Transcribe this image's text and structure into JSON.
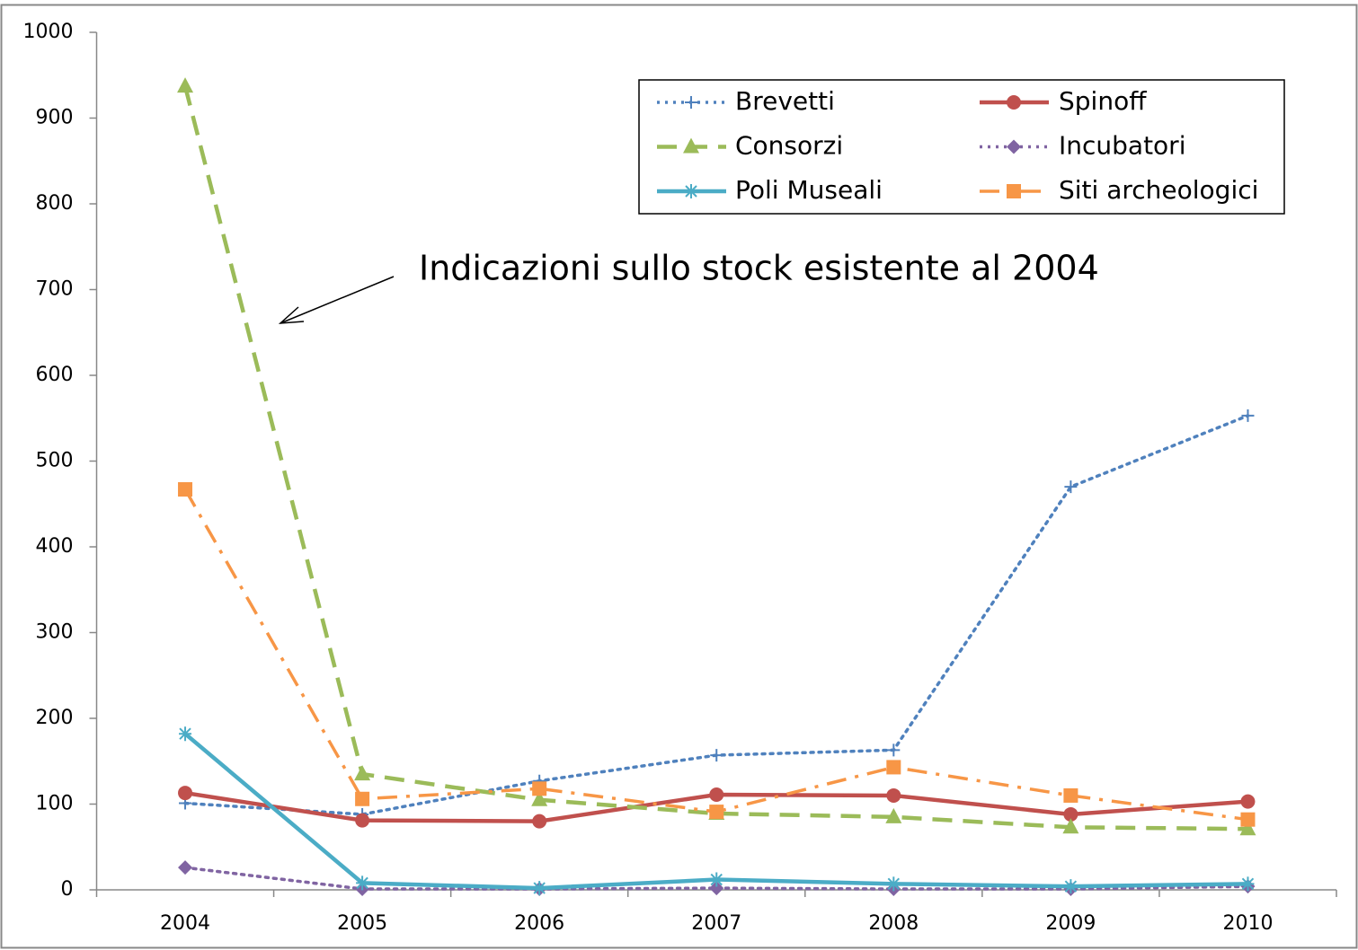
{
  "chart_data": {
    "type": "line",
    "annotation": "Indicazioni sullo stock esistente al 2004",
    "categories": [
      "2004",
      "2005",
      "2006",
      "2007",
      "2008",
      "2009",
      "2010"
    ],
    "ylim": [
      0,
      1000
    ],
    "yticks": [
      0,
      100,
      200,
      300,
      400,
      500,
      600,
      700,
      800,
      900,
      1000
    ],
    "series": [
      {
        "name": "Brevetti",
        "color": "#4f81bd",
        "dash": "dot",
        "marker": "plus",
        "values": [
          101,
          88,
          127,
          157,
          163,
          470,
          553
        ]
      },
      {
        "name": "Spinoff",
        "color": "#c0504d",
        "dash": "solid",
        "marker": "circle",
        "values": [
          113,
          81,
          80,
          111,
          110,
          88,
          103
        ]
      },
      {
        "name": "Consorzi",
        "color": "#9bbb59",
        "dash": "dash",
        "marker": "triangle",
        "values": [
          937,
          135,
          105,
          89,
          85,
          73,
          71
        ]
      },
      {
        "name": "Incubatori",
        "color": "#8064a2",
        "dash": "dot",
        "marker": "diamond",
        "values": [
          26,
          1,
          1,
          2,
          1,
          1,
          4
        ]
      },
      {
        "name": "Poli Museali",
        "color": "#4bacc6",
        "dash": "solid",
        "marker": "star",
        "values": [
          182,
          8,
          2,
          12,
          7,
          4,
          7
        ]
      },
      {
        "name": "Siti archeologici",
        "color": "#f79646",
        "dash": "dashdot",
        "marker": "square",
        "values": [
          467,
          106,
          118,
          91,
          143,
          110,
          82
        ]
      }
    ]
  }
}
